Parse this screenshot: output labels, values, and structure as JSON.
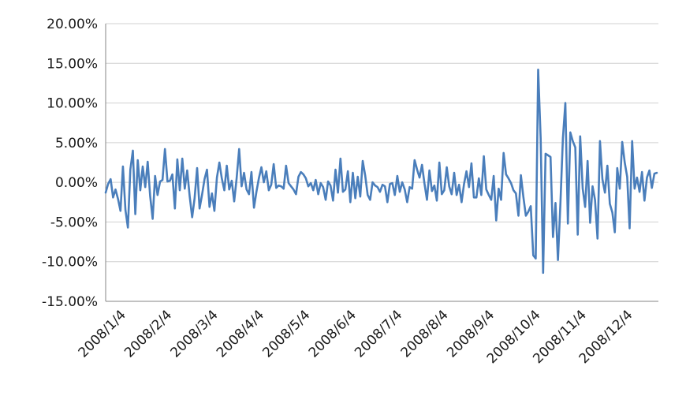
{
  "chart_data": {
    "type": "line",
    "title": "",
    "xlabel": "",
    "ylabel": "",
    "ylim": [
      -15,
      20
    ],
    "y_ticks": [
      "20.00%",
      "15.00%",
      "10.00%",
      "5.00%",
      "0.00%",
      "-5.00%",
      "-10.00%",
      "-15.00%"
    ],
    "y_tick_values": [
      20,
      15,
      10,
      5,
      0,
      -5,
      -10,
      -15
    ],
    "x_ticks": [
      "2008/1/4",
      "2008/2/4",
      "2008/3/4",
      "2008/4/4",
      "2008/5/4",
      "2008/6/4",
      "2008/7/4",
      "2008/8/4",
      "2008/9/4",
      "2008/10/4",
      "2008/11/4",
      "2008/12/4"
    ],
    "grid": "horizontal",
    "legend": "none",
    "line_color": "#4a7ebb",
    "series": [
      {
        "values": [
          -1.3,
          -0.2,
          0.4,
          -1.9,
          -0.9,
          -2.1,
          -3.6,
          2.0,
          -3.5,
          -5.7,
          1.6,
          4.0,
          -4.0,
          2.8,
          -1.0,
          2.0,
          -0.6,
          2.6,
          -1.7,
          -4.6,
          0.8,
          -1.6,
          0.1,
          0.3,
          4.2,
          0.1,
          0.2,
          1.0,
          -3.3,
          2.9,
          -1.0,
          3.0,
          -0.8,
          1.5,
          -1.8,
          -4.4,
          -2.0,
          1.8,
          -3.3,
          -1.6,
          0.4,
          1.6,
          -3.1,
          -1.4,
          -3.6,
          0.6,
          2.5,
          0.5,
          -1.0,
          2.1,
          -0.9,
          0.2,
          -2.4,
          0.5,
          4.2,
          -0.5,
          1.2,
          -0.9,
          -1.5,
          1.3,
          -3.2,
          -1.2,
          0.5,
          1.9,
          0.0,
          1.4,
          -1.0,
          -0.3,
          2.3,
          -0.7,
          -0.4,
          -0.5,
          -0.8,
          2.1,
          -0.1,
          -0.5,
          -0.9,
          -1.5,
          0.7,
          1.3,
          1.0,
          0.5,
          -0.5,
          -0.1,
          -1.0,
          0.3,
          -1.5,
          -0.1,
          -0.6,
          -2.2,
          0.1,
          -0.4,
          -2.3,
          1.6,
          -1.3,
          3.0,
          -1.2,
          -0.9,
          1.4,
          -2.5,
          1.2,
          -2.0,
          0.7,
          -1.8,
          2.7,
          0.9,
          -1.6,
          -2.2,
          0.0,
          -0.4,
          -0.6,
          -1.2,
          -0.3,
          -0.5,
          -2.5,
          -0.2,
          -0.1,
          -1.6,
          0.8,
          -1.2,
          0.0,
          -0.9,
          -2.5,
          -0.6,
          -0.8,
          2.8,
          1.6,
          0.6,
          2.2,
          -0.2,
          -2.2,
          1.5,
          -1.1,
          -0.4,
          -2.3,
          2.5,
          -1.5,
          -1.0,
          1.9,
          -0.5,
          -1.5,
          1.2,
          -1.6,
          -0.3,
          -2.5,
          -0.2,
          1.4,
          -0.6,
          2.4,
          -1.9,
          -1.9,
          0.5,
          -1.6,
          3.3,
          -0.9,
          -1.6,
          -2.2,
          0.8,
          -4.8,
          -0.8,
          -2.2,
          3.7,
          1.0,
          0.5,
          -0.1,
          -1.0,
          -1.4,
          -4.2,
          0.9,
          -1.8,
          -4.2,
          -3.7,
          -3.0,
          -9.2,
          -9.6,
          14.2,
          5.5,
          -11.4,
          3.6,
          3.4,
          3.2,
          -6.9,
          -2.6,
          -9.8,
          -2.5,
          5.6,
          10.0,
          -5.2,
          6.3,
          5.2,
          4.4,
          -6.6,
          5.8,
          -0.8,
          -3.1,
          2.7,
          -5.1,
          -0.5,
          -2.2,
          -7.1,
          5.2,
          0.4,
          -1.3,
          2.1,
          -2.7,
          -3.8,
          -6.3,
          1.8,
          -0.8,
          5.1,
          2.5,
          0.7,
          -5.8,
          5.2,
          -0.8,
          0.6,
          -1.2,
          1.3,
          -2.3,
          0.6,
          1.5,
          -0.7,
          1.1,
          1.2
        ]
      }
    ]
  }
}
